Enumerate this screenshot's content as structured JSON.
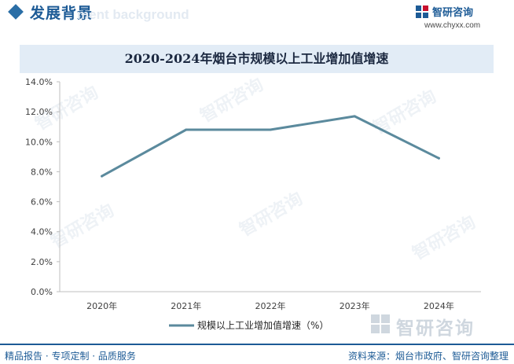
{
  "header": {
    "title": "发展背景",
    "subtitle": "ment background",
    "logo_name": "智研咨询",
    "logo_url": "www.chyxx.com",
    "brand_color": "#1d5b96"
  },
  "watermark": {
    "text": "智研咨询"
  },
  "chart_data": {
    "type": "line",
    "title": "2020-2024年烟台市规模以上工业增加值增速",
    "categories": [
      "2020年",
      "2021年",
      "2022年",
      "2023年",
      "2024年"
    ],
    "series": [
      {
        "name": "规模以上工业增加值增速（%）",
        "values": [
          7.7,
          10.8,
          10.8,
          11.7,
          8.9
        ],
        "color": "#5b8a9d"
      }
    ],
    "y_ticks": [
      "0.0%",
      "2.0%",
      "4.0%",
      "6.0%",
      "8.0%",
      "10.0%",
      "12.0%",
      "14.0%"
    ],
    "ylim": [
      0,
      14
    ],
    "grid": false,
    "legend_position": "bottom"
  },
  "footer": {
    "left": "精品报告 · 专项定制 · 品质服务",
    "right": "资料来源：烟台市政府、智研咨询整理"
  }
}
